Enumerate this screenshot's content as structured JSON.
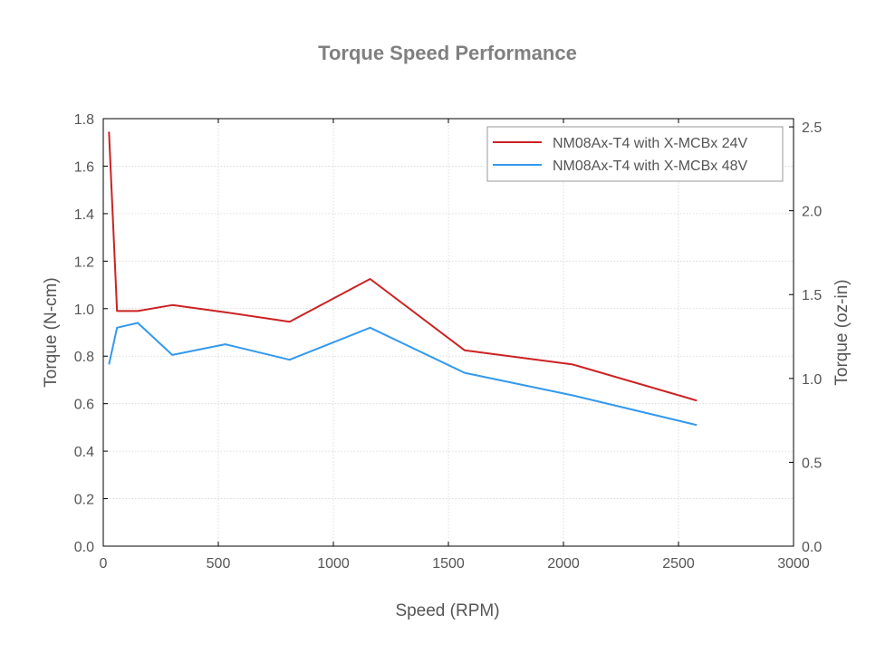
{
  "chart_data": {
    "type": "line",
    "title": "Torque Speed Performance",
    "xlabel": "Speed (RPM)",
    "ylabel": "Torque (N-cm)",
    "y2label": "Torque (oz-in)",
    "xlim": [
      0,
      3000
    ],
    "ylim": [
      0,
      1.8
    ],
    "y2lim": [
      0,
      2.549
    ],
    "xticks": [
      "0",
      "500",
      "1000",
      "1500",
      "2000",
      "2500",
      "3000"
    ],
    "yticks": [
      "0.0",
      "0.2",
      "0.4",
      "0.6",
      "0.8",
      "1.0",
      "1.2",
      "1.4",
      "1.6",
      "1.8"
    ],
    "y2ticks": [
      "0.0",
      "0.5",
      "1.0",
      "1.5",
      "2.0",
      "2.5"
    ],
    "grid": true,
    "legend_position": "top-right",
    "series": [
      {
        "name": "NM08Ax-T4 with X-MCBx 24V",
        "color": "#cc2222",
        "x": [
          25,
          60,
          150,
          300,
          530,
          810,
          1160,
          1570,
          2040,
          2580
        ],
        "y": [
          1.745,
          0.99,
          0.99,
          1.015,
          0.985,
          0.945,
          1.125,
          0.825,
          0.765,
          0.613
        ]
      },
      {
        "name": "NM08Ax-T4 with X-MCBx 48V",
        "color": "#3399ee",
        "x": [
          25,
          60,
          150,
          300,
          530,
          810,
          1160,
          1570,
          2040,
          2580
        ],
        "y": [
          0.765,
          0.92,
          0.94,
          0.805,
          0.85,
          0.785,
          0.92,
          0.73,
          0.635,
          0.51
        ]
      }
    ]
  }
}
